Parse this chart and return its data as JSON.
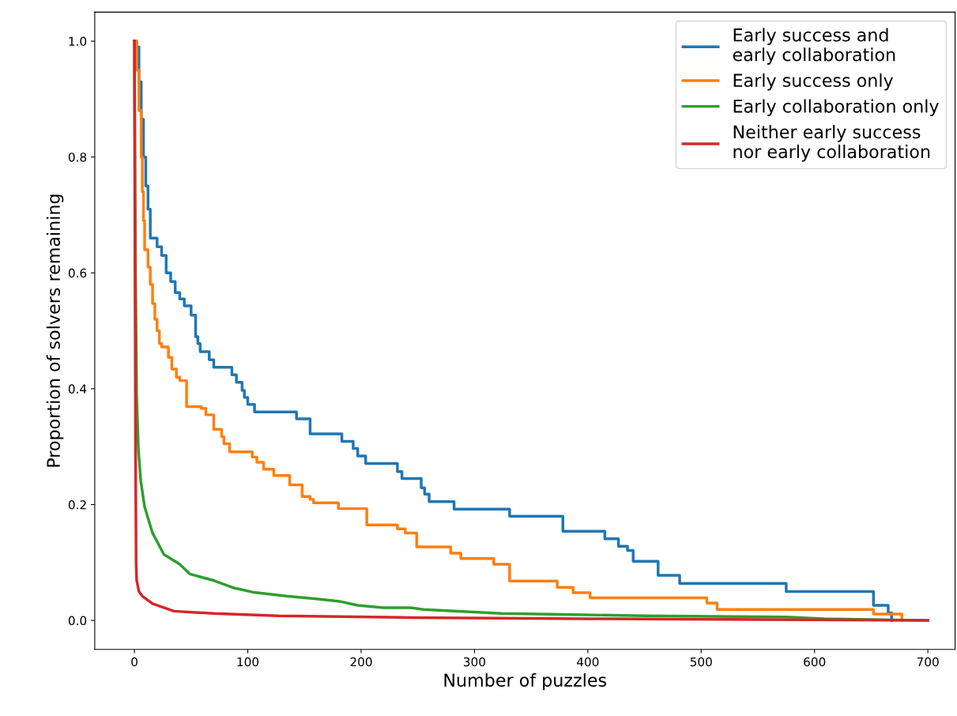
{
  "chart_data": {
    "type": "line",
    "xlabel": "Number of puzzles",
    "ylabel": "Proportion of solvers remaining",
    "xlim": [
      -35,
      724
    ],
    "ylim": [
      -0.05,
      1.05
    ],
    "xticks": [
      0,
      100,
      200,
      300,
      400,
      500,
      600,
      700
    ],
    "yticks": [
      {
        "value": 0,
        "label": "0.0"
      },
      {
        "value": 0.2,
        "label": "0.2"
      },
      {
        "value": 0.4,
        "label": "0.4"
      },
      {
        "value": 0.6,
        "label": "0.6"
      },
      {
        "value": 0.8,
        "label": "0.8"
      },
      {
        "value": 1.0,
        "label": "1.0"
      }
    ],
    "grid": false,
    "legend": "top right",
    "marker": "none",
    "line_style": "solid",
    "series": [
      {
        "name": "Early success and\nearly collaboration",
        "type": "step",
        "color": "#1f77b4",
        "x": [
          0,
          2,
          4,
          6,
          8,
          10,
          12,
          14,
          20,
          24,
          28,
          32,
          36,
          40,
          44,
          50,
          54,
          56,
          58,
          66,
          70,
          86,
          90,
          95,
          97,
          100,
          106,
          143,
          155,
          183,
          193,
          197,
          204,
          232,
          236,
          253,
          256,
          260,
          282,
          331,
          378,
          415,
          427,
          435,
          440,
          462,
          481,
          575,
          652,
          665,
          668
        ],
        "values": [
          1.0,
          0.99,
          0.93,
          0.865,
          0.8,
          0.75,
          0.71,
          0.66,
          0.645,
          0.63,
          0.6,
          0.585,
          0.566,
          0.555,
          0.543,
          0.527,
          0.49,
          0.478,
          0.464,
          0.45,
          0.437,
          0.424,
          0.411,
          0.397,
          0.385,
          0.373,
          0.36,
          0.348,
          0.322,
          0.309,
          0.297,
          0.284,
          0.271,
          0.257,
          0.245,
          0.229,
          0.218,
          0.205,
          0.192,
          0.18,
          0.154,
          0.141,
          0.128,
          0.121,
          0.102,
          0.078,
          0.064,
          0.05,
          0.026,
          0.013,
          0.0
        ]
      },
      {
        "name": "Early success only",
        "type": "step",
        "color": "#ff7f0e",
        "x": [
          0,
          2,
          4,
          6,
          7,
          8,
          9,
          12,
          14,
          16,
          18,
          20,
          22,
          24,
          30,
          33,
          37,
          40,
          46,
          59,
          63,
          70,
          77,
          79,
          84,
          104,
          108,
          114,
          123,
          137,
          148,
          155,
          158,
          180,
          205,
          232,
          239,
          249,
          279,
          288,
          317,
          331,
          373,
          387,
          402,
          505,
          514,
          652,
          677
        ],
        "values": [
          1.0,
          0.95,
          0.88,
          0.8,
          0.74,
          0.69,
          0.64,
          0.61,
          0.58,
          0.547,
          0.52,
          0.5,
          0.478,
          0.472,
          0.454,
          0.434,
          0.42,
          0.414,
          0.369,
          0.366,
          0.355,
          0.33,
          0.317,
          0.305,
          0.291,
          0.282,
          0.273,
          0.261,
          0.25,
          0.234,
          0.214,
          0.209,
          0.203,
          0.193,
          0.165,
          0.158,
          0.151,
          0.127,
          0.116,
          0.107,
          0.097,
          0.068,
          0.057,
          0.048,
          0.039,
          0.03,
          0.019,
          0.011,
          0.0
        ]
      },
      {
        "name": "Early collaboration only",
        "color": "#2ca02c",
        "x": [
          0,
          1,
          2,
          3.5,
          5.6,
          9,
          16,
          26,
          40,
          49,
          70,
          88,
          104,
          134,
          162,
          181,
          197,
          220,
          244,
          255,
          293,
          324,
          388,
          451,
          575,
          609,
          700
        ],
        "values": [
          1.0,
          0.6,
          0.386,
          0.295,
          0.241,
          0.196,
          0.151,
          0.114,
          0.097,
          0.08,
          0.069,
          0.056,
          0.049,
          0.042,
          0.037,
          0.033,
          0.026,
          0.022,
          0.022,
          0.019,
          0.015,
          0.012,
          0.01,
          0.008,
          0.006,
          0.003,
          0.0
        ]
      },
      {
        "name": "Neither early success\nnor early collaboration",
        "color": "#d62728",
        "x": [
          0,
          0.5,
          1,
          1.5,
          2,
          4,
          7,
          16,
          35,
          70,
          127,
          244,
          400,
          700
        ],
        "values": [
          1.0,
          0.6,
          0.3,
          0.1,
          0.069,
          0.05,
          0.042,
          0.029,
          0.016,
          0.012,
          0.008,
          0.005,
          0.003,
          0.0
        ]
      }
    ]
  }
}
